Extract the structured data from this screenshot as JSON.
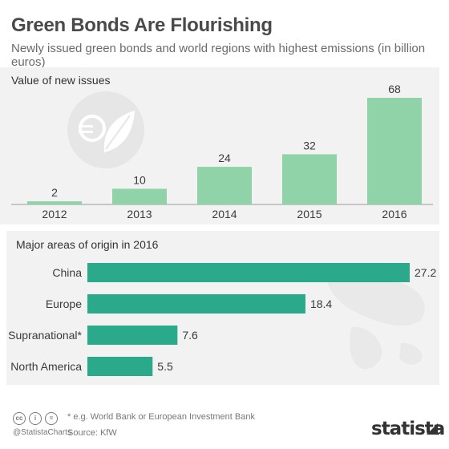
{
  "title": "Green Bonds Are Flourishing",
  "subtitle": "Newly issued green bonds and world regions with highest emissions (in billion euros)",
  "colors": {
    "column_bar": "#90d3a9",
    "row_bar": "#2aaa8a",
    "panel_bg": "#f2f2f2",
    "axis": "#9a9a9a"
  },
  "logo": {
    "icon": "euro-leaf-icon"
  },
  "chart_data": [
    {
      "type": "bar",
      "orientation": "vertical",
      "title": "Value of new issues",
      "categories": [
        "2012",
        "2013",
        "2014",
        "2015",
        "2016"
      ],
      "values": [
        2,
        10,
        24,
        32,
        68
      ],
      "data_labels": [
        "2",
        "10",
        "24",
        "32",
        "68"
      ],
      "ylim": [
        0,
        68
      ],
      "grid": false
    },
    {
      "type": "bar",
      "orientation": "horizontal",
      "title": "Major areas of origin in 2016",
      "categories": [
        "China",
        "Europe",
        "Supranational*",
        "North America"
      ],
      "values": [
        27.2,
        18.4,
        7.6,
        5.5
      ],
      "data_labels": [
        "27.2",
        "18.4",
        "7.6",
        "5.5"
      ],
      "xlim": [
        0,
        27.2
      ],
      "grid": false
    }
  ],
  "footer": {
    "license_icons": [
      "creative-commons-icon",
      "attribution-icon",
      "no-derivatives-icon"
    ],
    "handle": "@StatistaCharts",
    "footnote": "* e.g. World Bank or European Investment Bank",
    "source": "Source: KfW",
    "brand": "statista"
  }
}
